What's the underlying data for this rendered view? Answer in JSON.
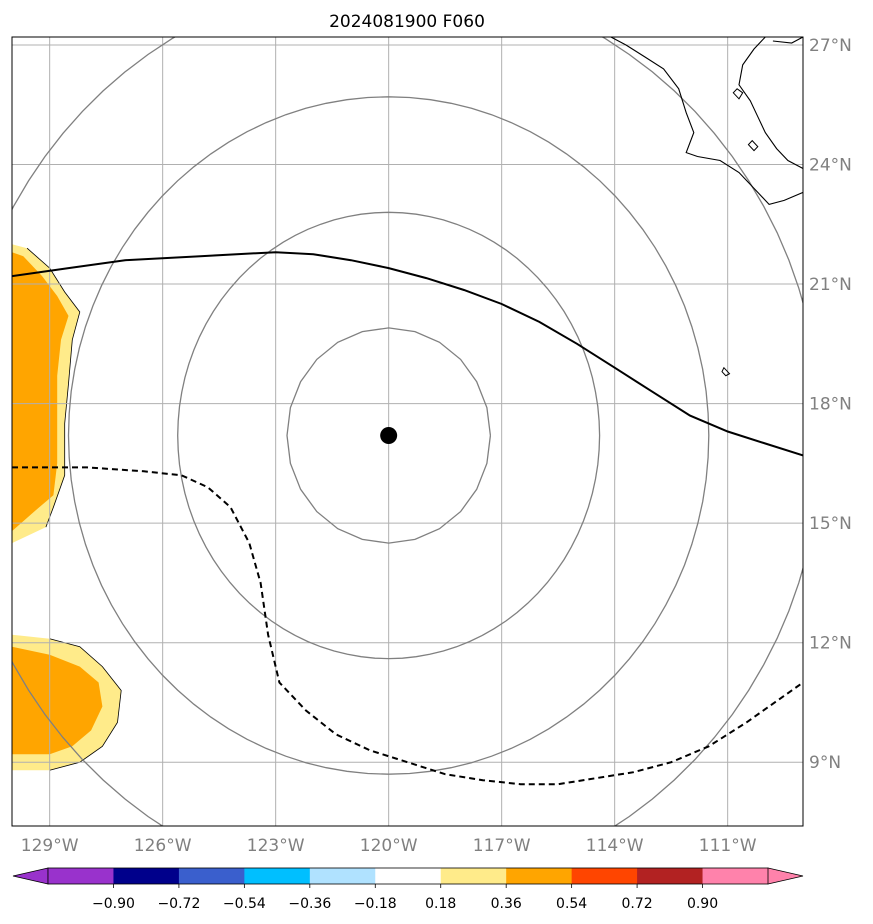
{
  "title": "2024081900 F060",
  "map": {
    "lon_range": [
      -130.0,
      -109.0
    ],
    "lat_range": [
      7.4,
      27.2
    ],
    "lon_ticks": [
      {
        "value": -129,
        "label": "129°W"
      },
      {
        "value": -126,
        "label": "126°W"
      },
      {
        "value": -123,
        "label": "123°W"
      },
      {
        "value": -120,
        "label": "120°W"
      },
      {
        "value": -117,
        "label": "117°W"
      },
      {
        "value": -114,
        "label": "114°W"
      },
      {
        "value": -111,
        "label": "111°W"
      }
    ],
    "lat_ticks": [
      {
        "value": 9,
        "label": "9°N"
      },
      {
        "value": 12,
        "label": "12°N"
      },
      {
        "value": 15,
        "label": "15°N"
      },
      {
        "value": 18,
        "label": "18°N"
      },
      {
        "value": 21,
        "label": "21°N"
      },
      {
        "value": 24,
        "label": "24°N"
      },
      {
        "value": 27,
        "label": "27°N"
      }
    ],
    "gridlines": true,
    "center": {
      "lon": -120.0,
      "lat": 17.2
    },
    "range_rings_deg": [
      2.7,
      5.6,
      8.5,
      11.5
    ],
    "colors": {
      "ring": "#808080",
      "grid": "#b0b0b0",
      "coast": "#000000",
      "center_marker": "#000000",
      "fill_low": "#ffeb8a",
      "fill_mid": "#ffa500"
    },
    "contour_solid": [
      [
        -130.0,
        21.2
      ],
      [
        -128.5,
        21.4
      ],
      [
        -127.0,
        21.6
      ],
      [
        -125.0,
        21.7
      ],
      [
        -123.0,
        21.8
      ],
      [
        -122.0,
        21.75
      ],
      [
        -121.0,
        21.6
      ],
      [
        -120.0,
        21.4
      ],
      [
        -119.0,
        21.15
      ],
      [
        -118.0,
        20.85
      ],
      [
        -117.0,
        20.5
      ],
      [
        -116.0,
        20.05
      ],
      [
        -115.0,
        19.5
      ],
      [
        -114.0,
        18.9
      ],
      [
        -113.0,
        18.3
      ],
      [
        -112.0,
        17.7
      ],
      [
        -111.0,
        17.3
      ],
      [
        -110.0,
        17.0
      ],
      [
        -109.0,
        16.7
      ]
    ],
    "contour_dashed": [
      [
        -130.0,
        16.4
      ],
      [
        -128.0,
        16.4
      ],
      [
        -126.5,
        16.3
      ],
      [
        -125.5,
        16.2
      ],
      [
        -124.8,
        15.9
      ],
      [
        -124.2,
        15.4
      ],
      [
        -123.7,
        14.5
      ],
      [
        -123.4,
        13.5
      ],
      [
        -123.2,
        12.2
      ],
      [
        -122.9,
        11.0
      ],
      [
        -122.2,
        10.3
      ],
      [
        -121.4,
        9.7
      ],
      [
        -120.5,
        9.3
      ],
      [
        -119.5,
        9.0
      ],
      [
        -118.5,
        8.7
      ],
      [
        -117.5,
        8.55
      ],
      [
        -116.5,
        8.45
      ],
      [
        -115.5,
        8.45
      ],
      [
        -114.5,
        8.6
      ],
      [
        -113.5,
        8.75
      ],
      [
        -112.5,
        9.0
      ],
      [
        -111.5,
        9.4
      ],
      [
        -110.5,
        10.0
      ],
      [
        -109.0,
        11.0
      ]
    ],
    "filled_regions": [
      {
        "level": "low",
        "points": [
          [
            -130.0,
            14.5
          ],
          [
            -129.1,
            14.9
          ],
          [
            -128.9,
            15.4
          ],
          [
            -128.6,
            16.2
          ],
          [
            -128.6,
            17.5
          ],
          [
            -128.5,
            18.5
          ],
          [
            -128.4,
            19.6
          ],
          [
            -128.2,
            20.3
          ],
          [
            -128.6,
            20.8
          ],
          [
            -129.0,
            21.4
          ],
          [
            -129.6,
            21.9
          ],
          [
            -130.0,
            22.0
          ]
        ]
      },
      {
        "level": "mid",
        "points": [
          [
            -130.0,
            14.8
          ],
          [
            -129.4,
            15.3
          ],
          [
            -128.9,
            15.7
          ],
          [
            -128.8,
            16.5
          ],
          [
            -128.8,
            17.5
          ],
          [
            -128.8,
            18.7
          ],
          [
            -128.7,
            19.6
          ],
          [
            -128.5,
            20.2
          ],
          [
            -128.8,
            20.7
          ],
          [
            -129.2,
            21.2
          ],
          [
            -129.7,
            21.7
          ],
          [
            -130.0,
            21.8
          ]
        ]
      },
      {
        "level": "low",
        "points": [
          [
            -130.0,
            8.8
          ],
          [
            -129.0,
            8.8
          ],
          [
            -128.2,
            9.0
          ],
          [
            -127.6,
            9.4
          ],
          [
            -127.2,
            10.0
          ],
          [
            -127.1,
            10.8
          ],
          [
            -127.6,
            11.4
          ],
          [
            -128.2,
            11.9
          ],
          [
            -129.0,
            12.1
          ],
          [
            -130.0,
            12.2
          ]
        ]
      },
      {
        "level": "mid",
        "points": [
          [
            -130.0,
            9.2
          ],
          [
            -129.0,
            9.2
          ],
          [
            -128.4,
            9.4
          ],
          [
            -127.9,
            9.8
          ],
          [
            -127.6,
            10.4
          ],
          [
            -127.7,
            11.0
          ],
          [
            -128.2,
            11.4
          ],
          [
            -129.0,
            11.7
          ],
          [
            -130.0,
            11.9
          ]
        ]
      }
    ],
    "coast_lines": [
      [
        [
          -114.1,
          27.2
        ],
        [
          -113.7,
          27.0
        ],
        [
          -113.2,
          26.7
        ],
        [
          -112.7,
          26.4
        ],
        [
          -112.3,
          25.9
        ],
        [
          -112.1,
          25.3
        ],
        [
          -111.9,
          24.8
        ],
        [
          -112.1,
          24.3
        ],
        [
          -111.8,
          24.2
        ],
        [
          -111.2,
          24.1
        ],
        [
          -110.7,
          23.8
        ],
        [
          -110.2,
          23.3
        ],
        [
          -109.9,
          23.0
        ],
        [
          -109.5,
          23.1
        ],
        [
          -109.0,
          23.3
        ]
      ],
      [
        [
          -110.0,
          27.2
        ],
        [
          -110.3,
          26.9
        ],
        [
          -110.6,
          26.5
        ],
        [
          -110.7,
          26.0
        ],
        [
          -110.4,
          25.6
        ],
        [
          -110.2,
          25.2
        ],
        [
          -110.0,
          24.8
        ],
        [
          -109.7,
          24.4
        ],
        [
          -109.4,
          24.1
        ],
        [
          -109.0,
          23.9
        ]
      ],
      [
        [
          -109.0,
          27.2
        ],
        [
          -109.3,
          27.05
        ],
        [
          -109.8,
          27.1
        ]
      ]
    ],
    "islands": [
      [
        [
          -111.1,
          18.9
        ],
        [
          -110.95,
          18.75
        ],
        [
          -111.05,
          18.7
        ],
        [
          -111.15,
          18.8
        ]
      ],
      [
        [
          -110.35,
          24.6
        ],
        [
          -110.2,
          24.45
        ],
        [
          -110.3,
          24.35
        ],
        [
          -110.45,
          24.5
        ]
      ],
      [
        [
          -110.75,
          25.9
        ],
        [
          -110.6,
          25.8
        ],
        [
          -110.7,
          25.65
        ],
        [
          -110.85,
          25.8
        ]
      ]
    ]
  },
  "colorbar": {
    "colors": [
      "#9932cc",
      "#00008b",
      "#3a5fcd",
      "#00bfff",
      "#b0e2ff",
      "#ffffff",
      "#ffeb8a",
      "#ffa500",
      "#ff4500",
      "#b22222",
      "#ff82ab"
    ],
    "extend_low_color": "#9932cc",
    "extend_high_color": "#ff82ab",
    "labels": [
      "−0.90",
      "−0.72",
      "−0.54",
      "−0.36",
      "−0.18",
      "0.18",
      "0.36",
      "0.54",
      "0.72",
      "0.90"
    ]
  }
}
